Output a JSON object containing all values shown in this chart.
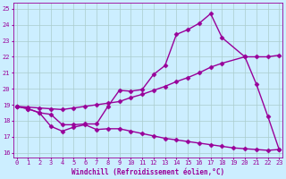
{
  "line1_x": [
    0,
    1,
    2,
    3,
    4,
    5,
    6,
    7,
    8,
    9,
    10,
    11,
    12,
    13,
    14,
    15,
    16,
    17,
    18,
    20,
    21,
    22,
    23
  ],
  "line1_y": [
    18.9,
    18.75,
    18.5,
    18.4,
    17.75,
    17.75,
    17.8,
    17.8,
    18.9,
    19.9,
    19.85,
    19.95,
    20.9,
    21.45,
    23.4,
    23.7,
    24.1,
    24.7,
    23.2,
    22.0,
    20.3,
    18.3,
    16.2
  ],
  "line2_x": [
    0,
    1,
    2,
    3,
    4,
    5,
    6,
    7,
    8,
    9,
    10,
    11,
    12,
    13,
    14,
    15,
    16,
    17,
    18,
    20,
    21,
    22,
    23
  ],
  "line2_y": [
    18.9,
    18.85,
    18.8,
    18.75,
    18.7,
    18.8,
    18.9,
    19.0,
    19.1,
    19.2,
    19.45,
    19.65,
    19.9,
    20.15,
    20.45,
    20.7,
    21.0,
    21.35,
    21.6,
    22.0,
    22.0,
    22.0,
    22.1
  ],
  "line3_x": [
    0,
    1,
    2,
    3,
    4,
    5,
    6,
    7,
    8,
    9,
    10,
    11,
    12,
    13,
    14,
    15,
    16,
    17,
    18,
    19,
    20,
    21,
    22,
    23
  ],
  "line3_y": [
    18.9,
    18.75,
    18.5,
    17.65,
    17.35,
    17.6,
    17.75,
    17.45,
    17.5,
    17.5,
    17.35,
    17.2,
    17.05,
    16.9,
    16.8,
    16.7,
    16.6,
    16.5,
    16.4,
    16.3,
    16.25,
    16.2,
    16.15,
    16.2
  ],
  "color": "#990099",
  "bg_color": "#cceeff",
  "grid_color": "#aacccc",
  "xlim": [
    -0.3,
    23.3
  ],
  "ylim": [
    15.7,
    25.4
  ],
  "yticks": [
    16,
    17,
    18,
    19,
    20,
    21,
    22,
    23,
    24,
    25
  ],
  "xticks": [
    0,
    1,
    2,
    3,
    4,
    5,
    6,
    7,
    8,
    9,
    10,
    11,
    12,
    13,
    14,
    15,
    16,
    17,
    18,
    19,
    20,
    21,
    22,
    23
  ],
  "xlabel": "Windchill (Refroidissement éolien,°C)",
  "marker": "D",
  "markersize": 2.5,
  "linewidth": 1.0,
  "axis_fontsize": 5.5,
  "tick_fontsize": 5.0
}
